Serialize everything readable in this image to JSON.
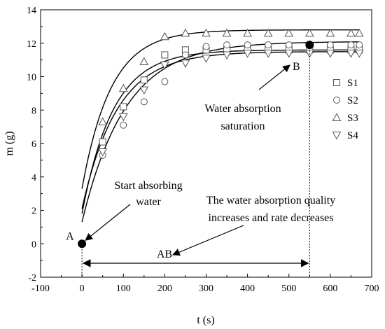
{
  "chart_data": {
    "type": "scatter",
    "xlabel": "t (s)",
    "ylabel": "m (g)",
    "xlim": [
      -100,
      700
    ],
    "ylim": [
      -2,
      14
    ],
    "x_ticks": [
      "-100",
      "0",
      "100",
      "200",
      "300",
      "400",
      "500",
      "600",
      "700"
    ],
    "y_ticks": [
      "-2",
      "0",
      "2",
      "4",
      "6",
      "8",
      "10",
      "12",
      "14"
    ],
    "legend_position": "right",
    "series": [
      {
        "name": "S1",
        "marker": "square",
        "x": [
          50,
          100,
          150,
          200,
          250,
          300,
          350,
          400,
          450,
          500,
          550,
          600,
          650,
          670
        ],
        "y": [
          6.1,
          8.2,
          9.8,
          11.3,
          11.6,
          11.6,
          11.6,
          11.6,
          11.6,
          11.6,
          11.6,
          11.6,
          11.6,
          11.6
        ],
        "fit": {
          "m0": 1.8,
          "mmax": 11.6,
          "tau": 75
        }
      },
      {
        "name": "S2",
        "marker": "circle",
        "x": [
          50,
          100,
          150,
          200,
          250,
          300,
          350,
          400,
          450,
          500,
          550,
          600,
          650,
          670
        ],
        "y": [
          5.3,
          7.1,
          8.5,
          9.7,
          11.3,
          11.8,
          11.9,
          11.9,
          11.9,
          11.9,
          11.9,
          11.9,
          11.9,
          11.9
        ],
        "fit": {
          "m0": 1.3,
          "mmax": 12.1,
          "tau": 105
        }
      },
      {
        "name": "S3",
        "marker": "triangle-up",
        "x": [
          50,
          100,
          150,
          200,
          250,
          300,
          350,
          400,
          450,
          500,
          550,
          600,
          650,
          670
        ],
        "y": [
          7.3,
          9.3,
          10.9,
          12.4,
          12.6,
          12.6,
          12.6,
          12.6,
          12.6,
          12.6,
          12.6,
          12.6,
          12.6,
          12.6
        ],
        "fit": {
          "m0": 3.3,
          "mmax": 12.8,
          "tau": 70
        }
      },
      {
        "name": "S4",
        "marker": "triangle-down",
        "x": [
          50,
          100,
          150,
          200,
          250,
          300,
          350,
          400,
          450,
          500,
          550,
          600,
          650,
          670
        ],
        "y": [
          5.5,
          7.6,
          9.2,
          10.7,
          10.8,
          11.1,
          11.3,
          11.4,
          11.4,
          11.4,
          11.4,
          11.4,
          11.4,
          11.4
        ],
        "fit": {
          "m0": 2.1,
          "mmax": 11.5,
          "tau": 85
        }
      }
    ],
    "points": [
      {
        "label": "A",
        "x": 0,
        "y": 0
      },
      {
        "label": "B",
        "x": 550,
        "y": 11.9
      }
    ],
    "annotations": {
      "start_line1": "Start absorbing",
      "start_line2": "water",
      "quality_line1": "The water absorption quality",
      "quality_line2": "increases and rate decreases",
      "saturation_line1": "Water absorption",
      "saturation_line2": "saturation",
      "segment": "AB"
    }
  }
}
